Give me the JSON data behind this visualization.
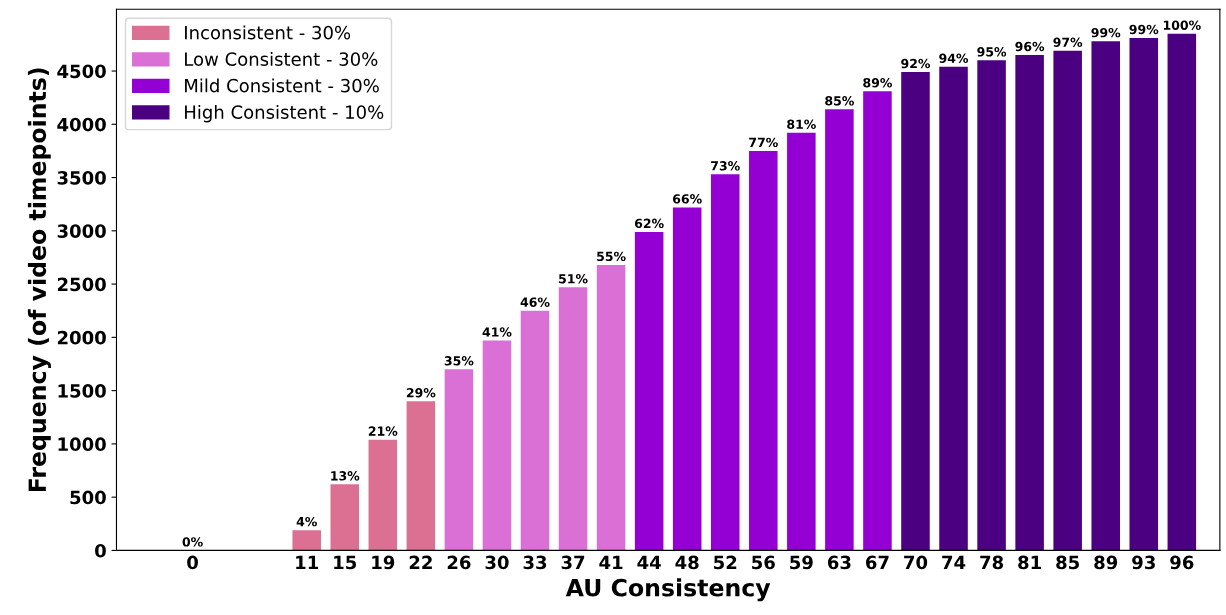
{
  "chart_data": {
    "type": "bar",
    "xlabel": "AU Consistency",
    "ylabel": "Frequency (of video timepoints)",
    "categories": [
      "0",
      null,
      null,
      "11",
      "15",
      "19",
      "22",
      "26",
      "30",
      "33",
      "37",
      "41",
      "44",
      "48",
      "52",
      "56",
      "59",
      "63",
      "67",
      "70",
      "74",
      "78",
      "81",
      "85",
      "89",
      "93",
      "96"
    ],
    "series": [
      {
        "name": "Inconsistent - 30%",
        "color": "#db7093",
        "values": [
          0,
          null,
          null,
          190,
          620,
          1040,
          1400,
          null,
          null,
          null,
          null,
          null,
          null,
          null,
          null,
          null,
          null,
          null,
          null,
          null,
          null,
          null,
          null,
          null,
          null,
          null,
          null
        ]
      },
      {
        "name": "Low Consistent - 30%",
        "color": "#da70d6",
        "values": [
          null,
          null,
          null,
          null,
          null,
          null,
          null,
          1700,
          1970,
          2250,
          2470,
          2680,
          null,
          null,
          null,
          null,
          null,
          null,
          null,
          null,
          null,
          null,
          null,
          null,
          null,
          null,
          null
        ]
      },
      {
        "name": "Mild Consistent - 30%",
        "color": "#9400d3",
        "values": [
          null,
          null,
          null,
          null,
          null,
          null,
          null,
          null,
          null,
          null,
          null,
          null,
          2990,
          3220,
          3530,
          3750,
          3920,
          4140,
          4310,
          null,
          null,
          null,
          null,
          null,
          null,
          null,
          null
        ]
      },
      {
        "name": "High Consistent - 10%",
        "color": "#4b0082",
        "values": [
          null,
          null,
          null,
          null,
          null,
          null,
          null,
          null,
          null,
          null,
          null,
          null,
          null,
          null,
          null,
          null,
          null,
          null,
          null,
          4490,
          4540,
          4600,
          4650,
          4690,
          4780,
          4810,
          4850
        ]
      }
    ],
    "annotations": [
      {
        "text": "0%",
        "x": "0",
        "y": 0
      },
      {
        "text": "4%",
        "x": "11",
        "y": 190
      },
      {
        "text": "13%",
        "x": "15",
        "y": 620
      },
      {
        "text": "21%",
        "x": "19",
        "y": 1040
      },
      {
        "text": "29%",
        "x": "22",
        "y": 1400
      },
      {
        "text": "35%",
        "x": "26",
        "y": 1700
      },
      {
        "text": "41%",
        "x": "30",
        "y": 1970
      },
      {
        "text": "46%",
        "x": "33",
        "y": 2250
      },
      {
        "text": "51%",
        "x": "37",
        "y": 2470
      },
      {
        "text": "55%",
        "x": "41",
        "y": 2680
      },
      {
        "text": "62%",
        "x": "44",
        "y": 2990
      },
      {
        "text": "66%",
        "x": "48",
        "y": 3220
      },
      {
        "text": "73%",
        "x": "52",
        "y": 3530
      },
      {
        "text": "77%",
        "x": "56",
        "y": 3750
      },
      {
        "text": "81%",
        "x": "59",
        "y": 3920
      },
      {
        "text": "85%",
        "x": "63",
        "y": 4140
      },
      {
        "text": "89%",
        "x": "67",
        "y": 4310
      },
      {
        "text": "92%",
        "x": "70",
        "y": 4490
      },
      {
        "text": "94%",
        "x": "74",
        "y": 4540
      },
      {
        "text": "95%",
        "x": "78",
        "y": 4600
      },
      {
        "text": "96%",
        "x": "81",
        "y": 4650
      },
      {
        "text": "97%",
        "x": "85",
        "y": 4690
      },
      {
        "text": "99%",
        "x": "89",
        "y": 4780
      },
      {
        "text": "99%",
        "x": "93",
        "y": 4810
      },
      {
        "text": "100%",
        "x": "96",
        "y": 4850
      }
    ],
    "ylim": [
      0,
      5080
    ],
    "yticks": [
      0,
      500,
      1000,
      1500,
      2000,
      2500,
      3000,
      3500,
      4000,
      4500
    ],
    "legend": "top left"
  }
}
